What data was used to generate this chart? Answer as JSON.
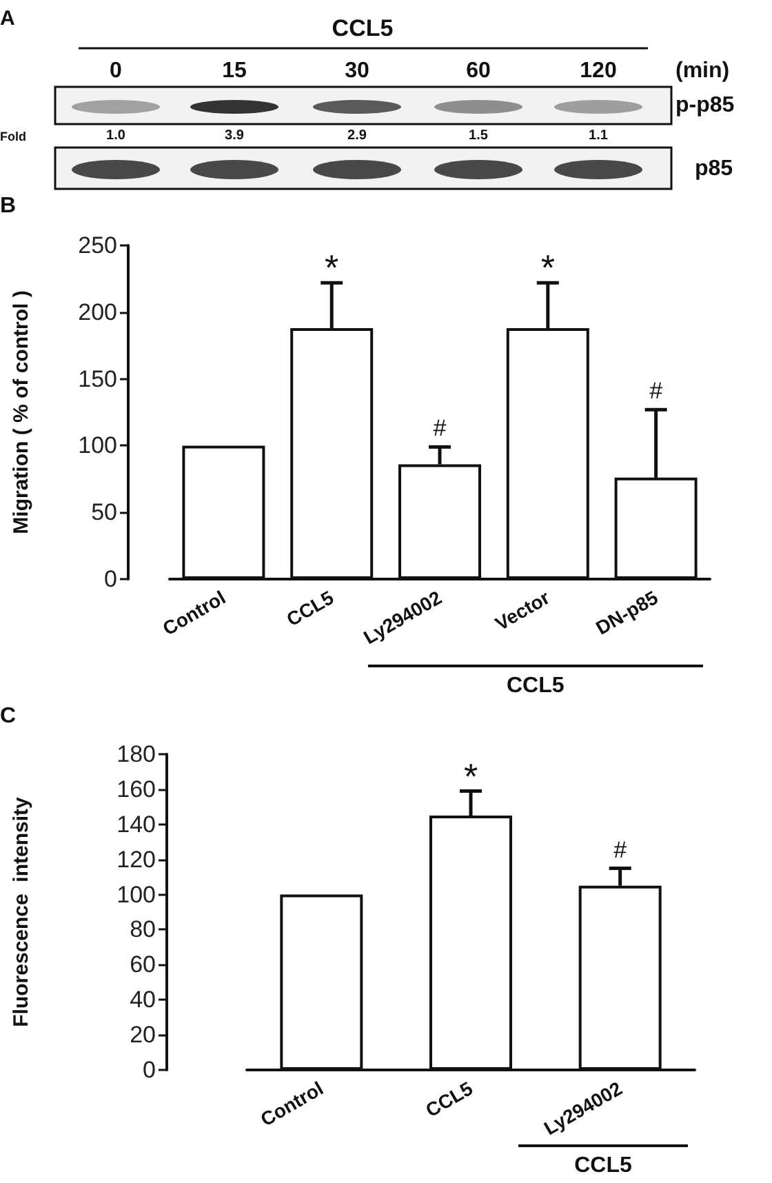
{
  "chart_data": [
    {
      "type": "other",
      "title": "CCL5",
      "categories": [
        "0",
        "15",
        "30",
        "60",
        "120"
      ],
      "values": [
        1.0,
        3.9,
        2.9,
        1.5,
        1.1
      ],
      "value_labels": [
        "1.0",
        "3.9",
        "2.9",
        "1.5",
        "1.1"
      ],
      "annotations": [
        "A",
        "(min)",
        "p-p85",
        "p85",
        "Fold"
      ]
    },
    {
      "type": "bar",
      "ylabel": "Migration ( % of control )",
      "categories": [
        "Control",
        "CCL5",
        "Ly294002",
        "Vector",
        "DN-p85"
      ],
      "values": [
        100,
        188,
        86,
        188,
        76
      ],
      "color": "#ffffff",
      "errors": [
        null,
        [
          188,
          222
        ],
        [
          86,
          99
        ],
        [
          188,
          222
        ],
        [
          76,
          127
        ]
      ],
      "ylim": [
        0,
        250
      ],
      "yticks": [
        0,
        50,
        100,
        150,
        200,
        250
      ],
      "annotations": [
        "B",
        {
          "text": "*",
          "x": "CCL5",
          "y": 222
        },
        {
          "text": "#",
          "x": "Ly294002",
          "y": 99
        },
        {
          "text": "*",
          "x": "Vector",
          "y": 222
        },
        {
          "text": "#",
          "x": "DN-p85",
          "y": 127
        },
        "CCL5"
      ]
    },
    {
      "type": "bar",
      "ylabel": "Fluorescence  intensity",
      "categories": [
        "Control",
        "CCL5",
        "Ly294002"
      ],
      "values": [
        100,
        145,
        105
      ],
      "color": "#ffffff",
      "errors": [
        null,
        [
          145,
          159
        ],
        [
          105,
          115
        ]
      ],
      "ylim": [
        0,
        180
      ],
      "yticks": [
        0,
        20,
        40,
        60,
        80,
        100,
        120,
        140,
        160,
        180
      ],
      "annotations": [
        "C",
        {
          "text": "*",
          "x": "CCL5",
          "y": 159
        },
        {
          "text": "#",
          "x": "Ly294002",
          "y": 115
        },
        "CCL5"
      ]
    }
  ]
}
